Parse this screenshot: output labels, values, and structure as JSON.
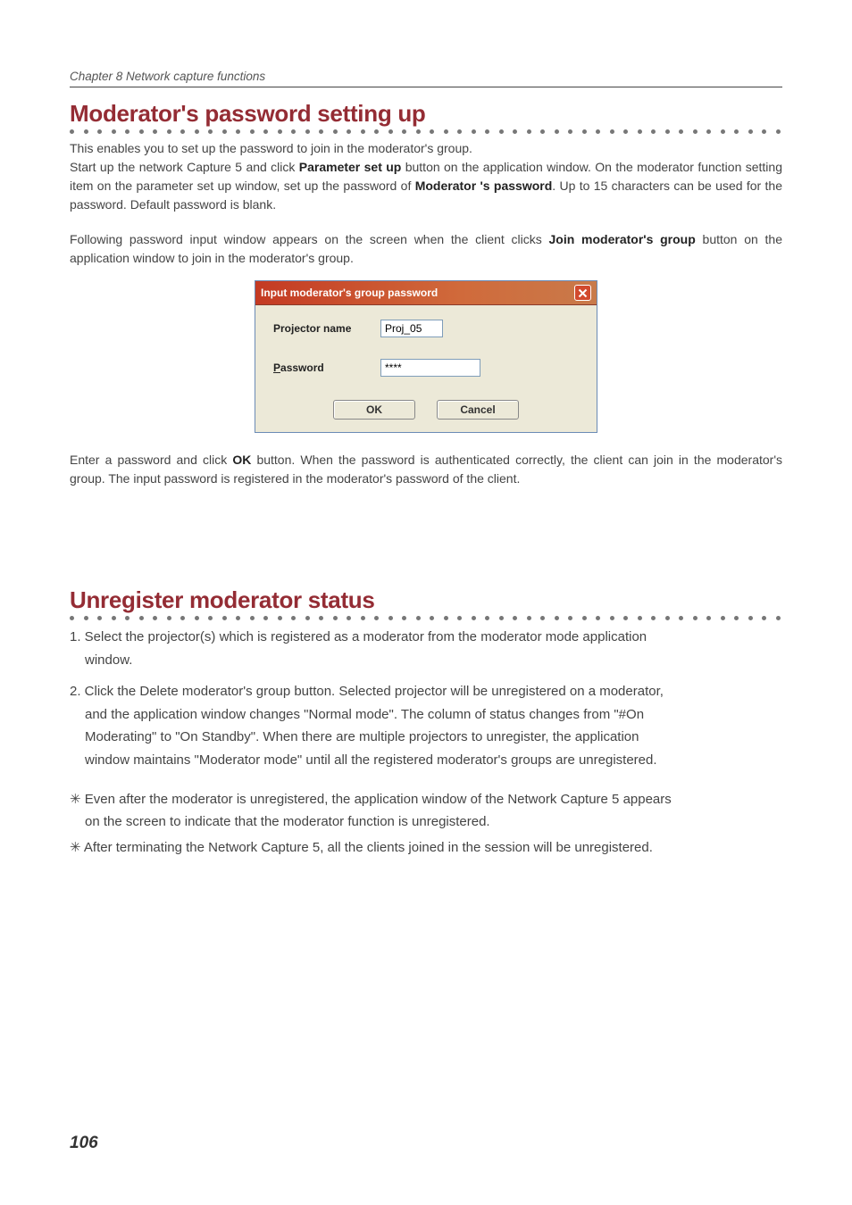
{
  "chapter_label": "Chapter 8 Network capture functions",
  "section1": {
    "heading": "Moderator's password setting up",
    "p1a": "This enables you to set up the password to join in the moderator's group.",
    "p1b_pre": "Start up the network Capture 5 and click ",
    "p1b_b1": "Parameter set up",
    "p1b_mid": " button on the application window. On the moderator function setting item on the parameter set up window, set up the password of ",
    "p1b_b2": "Moderator 's password",
    "p1b_post": ". Up to 15 characters can be used for the password. Default  password is blank.",
    "p2_pre": "Following password input window appears on the screen when the client clicks ",
    "p2_b": "Join moderator's group",
    "p2_post": " button on the application window to join in the moderator's group.",
    "p3_pre": "Enter a password and click ",
    "p3_b": "OK",
    "p3_post": " button. When the password is authenticated correctly, the client can join in the moderator's group. The input password is registered in the moderator's password of the client."
  },
  "dialog": {
    "title": "Input moderator's group password",
    "label_projector": "Projector name",
    "value_projector": "Proj_05",
    "label_password_u": "P",
    "label_password_rest": "assword",
    "value_password": "****",
    "btn_ok": "OK",
    "btn_cancel": "Cancel",
    "close_icon_color": "#ffffff"
  },
  "section2": {
    "heading": "Unregister moderator status",
    "item1_first": "1. Select the projector(s) which is registered as a moderator from the moderator mode application",
    "item1_hang": "window.",
    "item2_pre": "2. Click the ",
    "item2_b": "Delete moderator's group",
    "item2_post_a": " button. Selected projector will be unregistered on a moderator,",
    "item2_hang1": "and the application window changes \"Normal mode\".  The column of status changes from \"#On",
    "item2_hang2": "Moderating\" to \"On Standby\". When there are multiple projectors to unregister, the application",
    "item2_hang3": "window maintains \"Moderator mode\" until all the registered moderator's groups are unregistered.",
    "note1_first": "✳ Even after the moderator is unregistered, the application window of the Network Capture 5 appears",
    "note1_hang": "on the screen to indicate that the moderator function is unregistered.",
    "note2": "✳ After terminating the Network Capture 5, all the clients joined in the session will be unregistered."
  },
  "page_number": "106",
  "colors": {
    "heading": "#942c34",
    "titlebar_start": "#c43a23",
    "titlebar_end": "#c97a4a",
    "dialog_bg": "#ece9d8",
    "input_border": "#7f9db9"
  }
}
